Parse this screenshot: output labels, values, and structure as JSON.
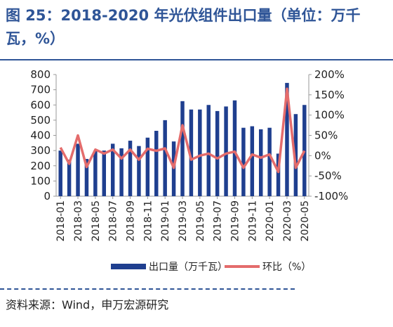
{
  "figure": {
    "title": "图 25：2018-2020 年光伏组件出口量（单位：万千瓦，%）",
    "source": "资料来源：Wind，申万宏源研究"
  },
  "colors": {
    "bar": "#1f3f8f",
    "line": "#e46c6c",
    "axis": "#999999",
    "accent": "#2f5597"
  },
  "chart_data": {
    "type": "bar",
    "categories": [
      "2018-01",
      "2018-02",
      "2018-03",
      "2018-04",
      "2018-05",
      "2018-06",
      "2018-07",
      "2018-08",
      "2018-09",
      "2018-10",
      "2018-11",
      "2018-12",
      "2019-01",
      "2019-02",
      "2019-03",
      "2019-04",
      "2019-05",
      "2019-06",
      "2019-07",
      "2019-08",
      "2019-09",
      "2019-10",
      "2019-11",
      "2019-12",
      "2020-01",
      "2020-02",
      "2020-03",
      "2020-04",
      "2020-05"
    ],
    "x_tick_labels": [
      "2018-01",
      "2018-03",
      "2018-05",
      "2018-07",
      "2018-09",
      "2018-11",
      "2019-01",
      "2019-03",
      "2019-05",
      "2019-07",
      "2019-09",
      "2019-11",
      "2020-01",
      "2020-03",
      "2020-05"
    ],
    "series": [
      {
        "name": "出口量（万千瓦）",
        "type": "bar",
        "axis": "left",
        "values": [
          300,
          240,
          345,
          245,
          300,
          300,
          345,
          315,
          365,
          330,
          385,
          430,
          500,
          360,
          625,
          570,
          570,
          600,
          560,
          590,
          630,
          450,
          460,
          440,
          450,
          280,
          745,
          540,
          600
        ]
      },
      {
        "name": "环比（%）",
        "type": "line",
        "axis": "right",
        "values": [
          20,
          -20,
          50,
          -28,
          15,
          5,
          15,
          -7,
          15,
          -10,
          17,
          12,
          18,
          -30,
          75,
          -10,
          0,
          5,
          -7,
          5,
          10,
          -30,
          3,
          -5,
          3,
          -40,
          165,
          -30,
          12
        ]
      }
    ],
    "ylim_left": [
      0,
      800
    ],
    "yticks_left": [
      "0",
      "100",
      "200",
      "300",
      "400",
      "500",
      "600",
      "700",
      "800"
    ],
    "ylim_right": [
      -100,
      200
    ],
    "yticks_right": [
      "-100%",
      "-50%",
      "0%",
      "50%",
      "100%",
      "150%",
      "200%"
    ],
    "grid": false,
    "legend_position": "bottom"
  }
}
